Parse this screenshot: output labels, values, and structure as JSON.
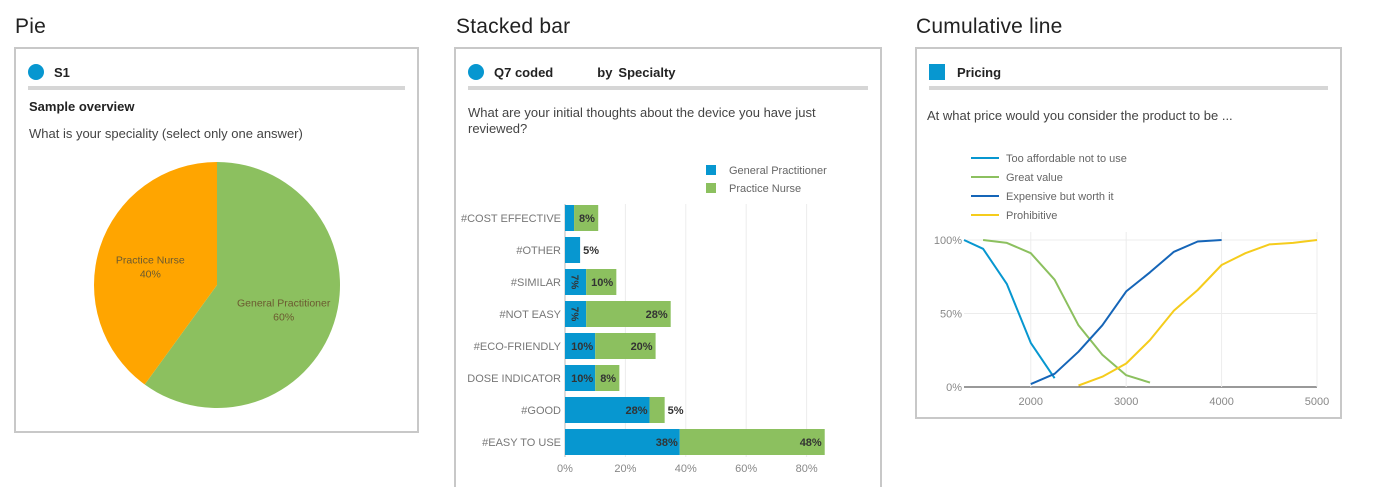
{
  "pie_panel": {
    "section_title": "Pie",
    "header": "S1",
    "subtitle": "Sample overview",
    "question": "What is your speciality (select only one answer)"
  },
  "bar_panel": {
    "section_title": "Stacked bar",
    "header": "Q7 coded",
    "by": "by",
    "specialty": "Specialty",
    "question": "What are your initial thoughts about the device you have just reviewed?"
  },
  "line_panel": {
    "section_title": "Cumulative line",
    "header": "Pricing",
    "question": "At what price would you consider the product to be ..."
  },
  "colors": {
    "blue": "#0797d0",
    "green": "#8cc05f",
    "orange": "#ffa500",
    "navy": "#1565b8",
    "yellow": "#f5cc1c"
  },
  "chart_data": [
    {
      "type": "pie",
      "slices": [
        {
          "label": "General Practitioner",
          "value": 60,
          "value_label": "60%",
          "color": "#8cc05f"
        },
        {
          "label": "Practice Nurse",
          "value": 40,
          "value_label": "40%",
          "color": "#ffa500"
        }
      ]
    },
    {
      "type": "bar",
      "orientation": "horizontal",
      "stacked": true,
      "categories": [
        "#COST EFFECTIVE",
        "#OTHER",
        "#SIMILAR",
        "#NOT EASY",
        "#ECO-FRIENDLY",
        "DOSE INDICATOR",
        "#GOOD",
        "#EASY TO USE"
      ],
      "series": [
        {
          "name": "General Practitioner",
          "color": "#0797d0",
          "values": [
            3,
            5,
            7,
            7,
            10,
            10,
            28,
            38
          ],
          "labels": [
            "",
            "",
            "7%",
            "7%",
            "10%",
            "10%",
            "28%",
            "38%"
          ]
        },
        {
          "name": "Practice Nurse",
          "color": "#8cc05f",
          "values": [
            8,
            0,
            10,
            28,
            20,
            8,
            5,
            48
          ],
          "labels": [
            "8%",
            "",
            "10%",
            "28%",
            "20%",
            "8%",
            "",
            "48%"
          ]
        }
      ],
      "outside_labels": [
        "",
        "5%",
        "",
        "",
        "",
        "",
        "5%",
        ""
      ],
      "xlim": [
        0,
        85
      ],
      "xticks": [
        0,
        20,
        40,
        60,
        80
      ],
      "xtick_labels": [
        "0%",
        "20%",
        "40%",
        "60%",
        "80%"
      ],
      "grid": true,
      "legend": "top-right"
    },
    {
      "type": "line",
      "series": [
        {
          "name": "Too affordable not to use",
          "color": "#0797d0",
          "x": [
            1300,
            1500,
            1750,
            2000,
            2250
          ],
          "y": [
            100,
            94,
            70,
            30,
            6
          ]
        },
        {
          "name": "Great value",
          "color": "#8cc05f",
          "x": [
            1500,
            1750,
            2000,
            2250,
            2500,
            2750,
            3000,
            3250
          ],
          "y": [
            100,
            98,
            91,
            73,
            42,
            22,
            8,
            3
          ]
        },
        {
          "name": "Expensive but worth it",
          "color": "#1565b8",
          "x": [
            2000,
            2250,
            2500,
            2750,
            3000,
            3250,
            3500,
            3750,
            4000
          ],
          "y": [
            2,
            9,
            24,
            42,
            65,
            78,
            92,
            99,
            100
          ]
        },
        {
          "name": "Prohibitive",
          "color": "#f5cc1c",
          "x": [
            2500,
            2750,
            3000,
            3250,
            3500,
            3750,
            4000,
            4250,
            4500,
            4750,
            5000
          ],
          "y": [
            1,
            7,
            16,
            32,
            52,
            66,
            83,
            91,
            97,
            98,
            100
          ]
        }
      ],
      "xlim": [
        1300,
        5000
      ],
      "ylim": [
        0,
        100
      ],
      "xticks": [
        2000,
        3000,
        4000,
        5000
      ],
      "xtick_labels": [
        "2000",
        "3000",
        "4000",
        "5000"
      ],
      "yticks": [
        0,
        50,
        100
      ],
      "ytick_labels": [
        "0%",
        "50%",
        "100%"
      ],
      "grid": true,
      "legend": "top-left"
    }
  ]
}
